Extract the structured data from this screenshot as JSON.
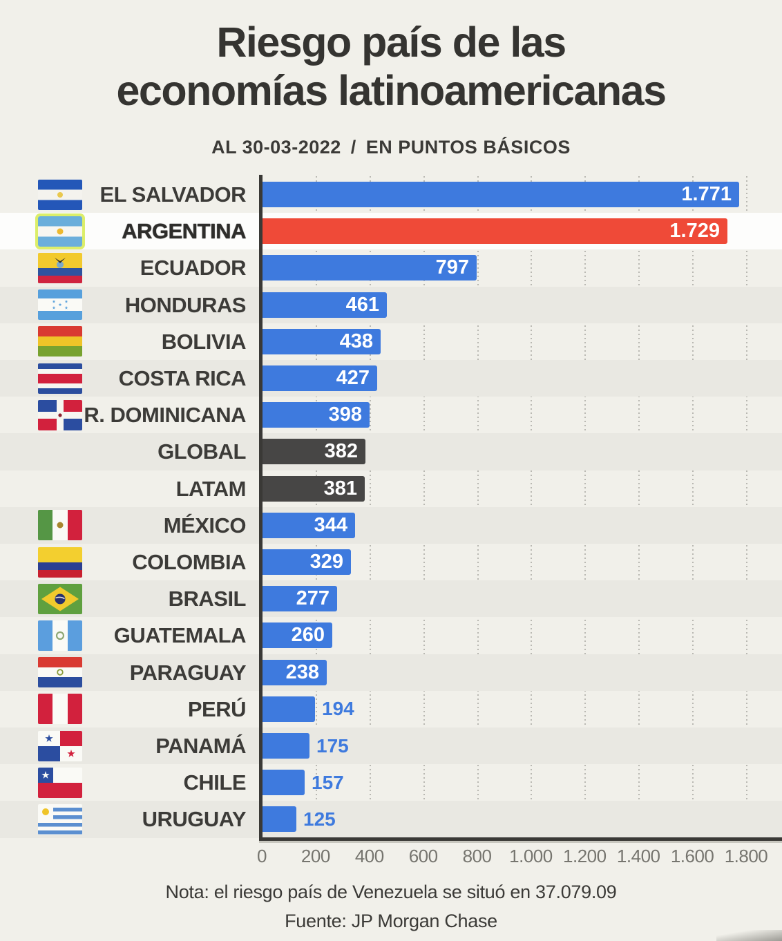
{
  "header": {
    "title_line1": "Riesgo país de las",
    "title_line2": "economías latinoamericanas",
    "subtitle": {
      "date": "AL 30-03-2022",
      "separator": "/",
      "units": "EN PUNTOS BÁSICOS"
    }
  },
  "footer": {
    "note": "Nota: el riesgo país de Venezuela se situó en 37.079.09",
    "source": "Fuente: JP Morgan Chase"
  },
  "colors": {
    "background": "#f1f0ea",
    "stripe": "#e9e8e2",
    "highlight_row": "#fdfdfc",
    "bar_blue": "#3e7ade",
    "bar_red": "#ef4a38",
    "bar_dark": "#474645",
    "value_outside_text": "#3e7ade",
    "axis": "#3a3936",
    "flag_highlight_border": "#dcee69"
  },
  "chart_data": {
    "type": "bar",
    "orientation": "horizontal",
    "title": "Riesgo país de las economías latinoamericanas",
    "xlabel": "",
    "ylabel": "",
    "unit": "puntos básicos",
    "as_of": "30-03-2022",
    "xlim": [
      0,
      1800
    ],
    "tick_step": 200,
    "grid": "vertical-dotted",
    "x_ticks": [
      "0",
      "200",
      "400",
      "600",
      "800",
      "1.000",
      "1.200",
      "1.400",
      "1.600",
      "1.800"
    ],
    "categories": [
      "EL SALVADOR",
      "ARGENTINA",
      "ECUADOR",
      "HONDURAS",
      "BOLIVIA",
      "COSTA RICA",
      "R. DOMINICANA",
      "GLOBAL",
      "LATAM",
      "MÉXICO",
      "COLOMBIA",
      "BRASIL",
      "GUATEMALA",
      "PARAGUAY",
      "PERÚ",
      "PANAMÁ",
      "CHILE",
      "URUGUAY"
    ],
    "values": [
      1771,
      1729,
      797,
      461,
      438,
      427,
      398,
      382,
      381,
      344,
      329,
      277,
      260,
      238,
      194,
      175,
      157,
      125
    ],
    "items": [
      {
        "label": "EL SALVADOR",
        "value": 1771,
        "display_value": "1.771",
        "flag": "el-salvador",
        "role": "default"
      },
      {
        "label": "ARGENTINA",
        "value": 1729,
        "display_value": "1.729",
        "flag": "argentina",
        "role": "highlight"
      },
      {
        "label": "ECUADOR",
        "value": 797,
        "display_value": "797",
        "flag": "ecuador",
        "role": "default"
      },
      {
        "label": "HONDURAS",
        "value": 461,
        "display_value": "461",
        "flag": "honduras",
        "role": "default"
      },
      {
        "label": "BOLIVIA",
        "value": 438,
        "display_value": "438",
        "flag": "bolivia",
        "role": "default"
      },
      {
        "label": "COSTA RICA",
        "value": 427,
        "display_value": "427",
        "flag": "costa-rica",
        "role": "default"
      },
      {
        "label": "R. DOMINICANA",
        "value": 398,
        "display_value": "398",
        "flag": "rep-dominicana",
        "role": "default"
      },
      {
        "label": "GLOBAL",
        "value": 382,
        "display_value": "382",
        "flag": null,
        "role": "aggregate"
      },
      {
        "label": "LATAM",
        "value": 381,
        "display_value": "381",
        "flag": null,
        "role": "aggregate"
      },
      {
        "label": "MÉXICO",
        "value": 344,
        "display_value": "344",
        "flag": "mexico",
        "role": "default"
      },
      {
        "label": "COLOMBIA",
        "value": 329,
        "display_value": "329",
        "flag": "colombia",
        "role": "default"
      },
      {
        "label": "BRASIL",
        "value": 277,
        "display_value": "277",
        "flag": "brasil",
        "role": "default"
      },
      {
        "label": "GUATEMALA",
        "value": 260,
        "display_value": "260",
        "flag": "guatemala",
        "role": "default"
      },
      {
        "label": "PARAGUAY",
        "value": 238,
        "display_value": "238",
        "flag": "paraguay",
        "role": "default"
      },
      {
        "label": "PERÚ",
        "value": 194,
        "display_value": "194",
        "flag": "peru",
        "role": "default"
      },
      {
        "label": "PANAMÁ",
        "value": 175,
        "display_value": "175",
        "flag": "panama",
        "role": "default"
      },
      {
        "label": "CHILE",
        "value": 157,
        "display_value": "157",
        "flag": "chile",
        "role": "default"
      },
      {
        "label": "URUGUAY",
        "value": 125,
        "display_value": "125",
        "flag": "uruguay",
        "role": "default"
      }
    ],
    "legend": null,
    "value_labels": "on-bar"
  }
}
